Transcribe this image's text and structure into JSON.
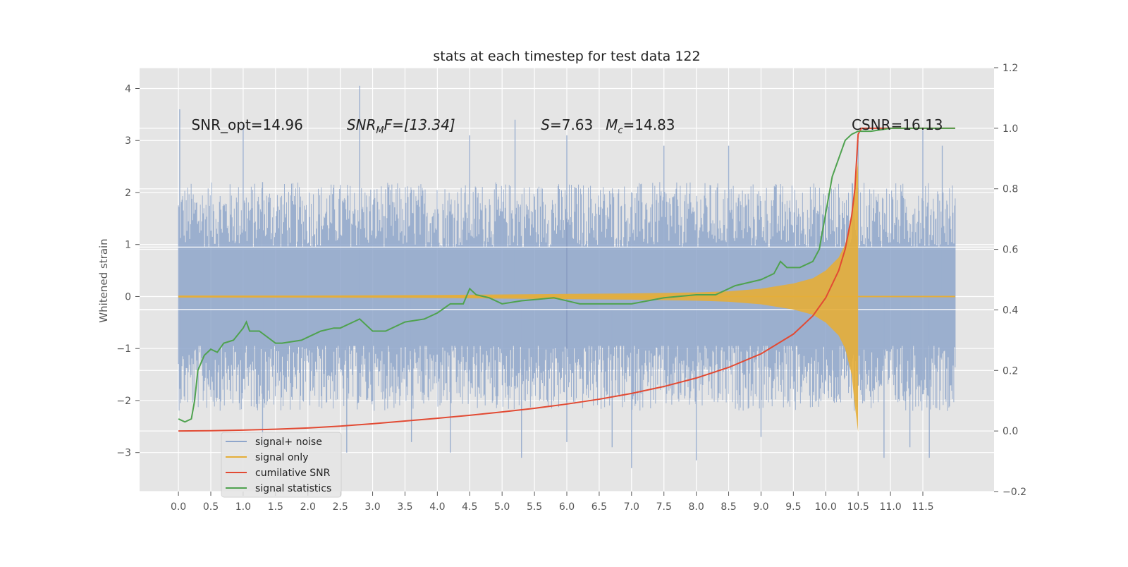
{
  "chart_data": {
    "type": "line",
    "title": "stats at each timestep for test data 122",
    "xlabel": "",
    "ylabel": "Whitened strain",
    "ylabel_right": "",
    "xlim": [
      -0.6,
      12.6
    ],
    "ylim": [
      -3.75,
      4.4
    ],
    "y2lim": [
      -0.2,
      1.2
    ],
    "xticks": [
      "0.0",
      "0.5",
      "1.0",
      "1.5",
      "2.0",
      "2.5",
      "3.0",
      "3.5",
      "4.0",
      "4.5",
      "5.0",
      "5.5",
      "6.0",
      "6.5",
      "7.0",
      "7.5",
      "8.0",
      "8.5",
      "9.0",
      "9.5",
      "10.0",
      "10.5",
      "11.0",
      "11.5"
    ],
    "yticks": [
      "4",
      "3",
      "2",
      "1",
      "0",
      "−1",
      "−2",
      "−3"
    ],
    "y2ticks": [
      "1.2",
      "1.0",
      "0.8",
      "0.6",
      "0.4",
      "0.2",
      "0.0",
      "−0.2"
    ],
    "grid": true,
    "legend_position": "lower-left",
    "colors": {
      "background": "#e5e5e5",
      "grid": "#ffffff",
      "signal_noise": "#8fa6cb",
      "signal_only": "#e5ae38",
      "cumulative_snr": "#e24a33",
      "signal_statistics": "#4fa24f"
    },
    "annotations": [
      {
        "text": "SNR_opt=14.96",
        "x": 0.2,
        "y": 3.3
      },
      {
        "text": "SNR",
        "sub": "M",
        "rest": "F=[13.34]",
        "italic": true,
        "x": 2.6,
        "y": 3.3
      },
      {
        "text": "S",
        "rest": "=7.63",
        "italic": true,
        "x": 5.6,
        "y": 3.3
      },
      {
        "text": "M",
        "sub": "c",
        "rest": "=14.83",
        "italic": true,
        "x": 6.6,
        "y": 3.3
      },
      {
        "text": "CSNR=16.13",
        "x": 10.4,
        "y": 3.3
      }
    ],
    "series": [
      {
        "name": "signal+ noise",
        "axis": "left",
        "kind": "noise_band",
        "x_range": [
          0.0,
          12.0
        ],
        "typical_range": [
          -1.9,
          1.9
        ],
        "spikes": [
          [
            0.02,
            3.6
          ],
          [
            0.03,
            -1.0
          ],
          [
            1.0,
            3.3
          ],
          [
            1.3,
            2.2
          ],
          [
            2.8,
            4.05
          ],
          [
            2.6,
            -3.0
          ],
          [
            4.5,
            3.1
          ],
          [
            5.2,
            3.4
          ],
          [
            6.0,
            3.1
          ],
          [
            6.0,
            -2.8
          ],
          [
            7.0,
            -3.3
          ],
          [
            7.5,
            2.9
          ],
          [
            8.0,
            -3.15
          ],
          [
            8.5,
            2.9
          ],
          [
            9.0,
            -2.7
          ],
          [
            10.5,
            3.0
          ],
          [
            11.5,
            3.2
          ],
          [
            11.6,
            -3.1
          ],
          [
            11.8,
            2.9
          ],
          [
            1.3,
            -2.9
          ],
          [
            3.6,
            -2.8
          ],
          [
            4.2,
            -3.0
          ],
          [
            5.3,
            -3.1
          ],
          [
            6.7,
            -2.9
          ],
          [
            10.9,
            -3.1
          ],
          [
            11.3,
            -2.9
          ]
        ]
      },
      {
        "name": "signal only",
        "axis": "left",
        "kind": "chirp_envelope",
        "x": [
          0.0,
          2.0,
          4.0,
          6.0,
          7.0,
          8.0,
          8.5,
          9.0,
          9.5,
          9.8,
          10.0,
          10.2,
          10.3,
          10.4,
          10.45,
          10.5
        ],
        "amplitude": [
          0.02,
          0.02,
          0.03,
          0.05,
          0.06,
          0.08,
          0.1,
          0.15,
          0.25,
          0.35,
          0.5,
          0.75,
          1.0,
          1.5,
          2.1,
          2.6
        ],
        "after_merger": 0.02,
        "x_end": 12.0
      },
      {
        "name": "cumilative SNR",
        "axis": "right",
        "x": [
          0.0,
          0.5,
          1.0,
          1.5,
          2.0,
          2.5,
          3.0,
          3.5,
          4.0,
          4.5,
          5.0,
          5.5,
          6.0,
          6.5,
          7.0,
          7.5,
          8.0,
          8.5,
          9.0,
          9.5,
          9.8,
          10.0,
          10.2,
          10.3,
          10.4,
          10.45,
          10.5,
          10.55,
          11.0,
          11.5,
          12.0
        ],
        "values": [
          0.0,
          0.001,
          0.003,
          0.006,
          0.01,
          0.016,
          0.024,
          0.033,
          0.042,
          0.052,
          0.063,
          0.075,
          0.089,
          0.105,
          0.124,
          0.147,
          0.175,
          0.21,
          0.255,
          0.32,
          0.38,
          0.44,
          0.53,
          0.6,
          0.71,
          0.8,
          0.98,
          1.0,
          1.0,
          1.0,
          1.0
        ]
      },
      {
        "name": "signal statistics",
        "axis": "right",
        "x": [
          0.0,
          0.1,
          0.2,
          0.25,
          0.3,
          0.4,
          0.5,
          0.6,
          0.7,
          0.85,
          1.0,
          1.05,
          1.1,
          1.25,
          1.5,
          1.6,
          1.9,
          2.0,
          2.2,
          2.4,
          2.5,
          2.7,
          2.8,
          3.0,
          3.2,
          3.5,
          3.8,
          4.0,
          4.2,
          4.4,
          4.5,
          4.6,
          4.8,
          5.0,
          5.3,
          5.8,
          6.0,
          6.2,
          6.5,
          6.9,
          7.0,
          7.5,
          8.0,
          8.3,
          8.6,
          9.0,
          9.2,
          9.3,
          9.4,
          9.6,
          9.8,
          9.9,
          10.0,
          10.1,
          10.2,
          10.3,
          10.4,
          10.5,
          10.7,
          11.0,
          11.5,
          12.0
        ],
        "values": [
          0.04,
          0.03,
          0.04,
          0.1,
          0.2,
          0.25,
          0.27,
          0.26,
          0.29,
          0.3,
          0.34,
          0.36,
          0.33,
          0.33,
          0.29,
          0.29,
          0.3,
          0.31,
          0.33,
          0.34,
          0.34,
          0.36,
          0.37,
          0.33,
          0.33,
          0.36,
          0.37,
          0.39,
          0.42,
          0.42,
          0.47,
          0.45,
          0.44,
          0.42,
          0.43,
          0.44,
          0.43,
          0.42,
          0.42,
          0.42,
          0.42,
          0.44,
          0.45,
          0.45,
          0.48,
          0.5,
          0.52,
          0.56,
          0.54,
          0.54,
          0.56,
          0.6,
          0.72,
          0.84,
          0.9,
          0.96,
          0.98,
          0.99,
          0.99,
          1.0,
          1.0,
          1.0
        ]
      }
    ]
  }
}
